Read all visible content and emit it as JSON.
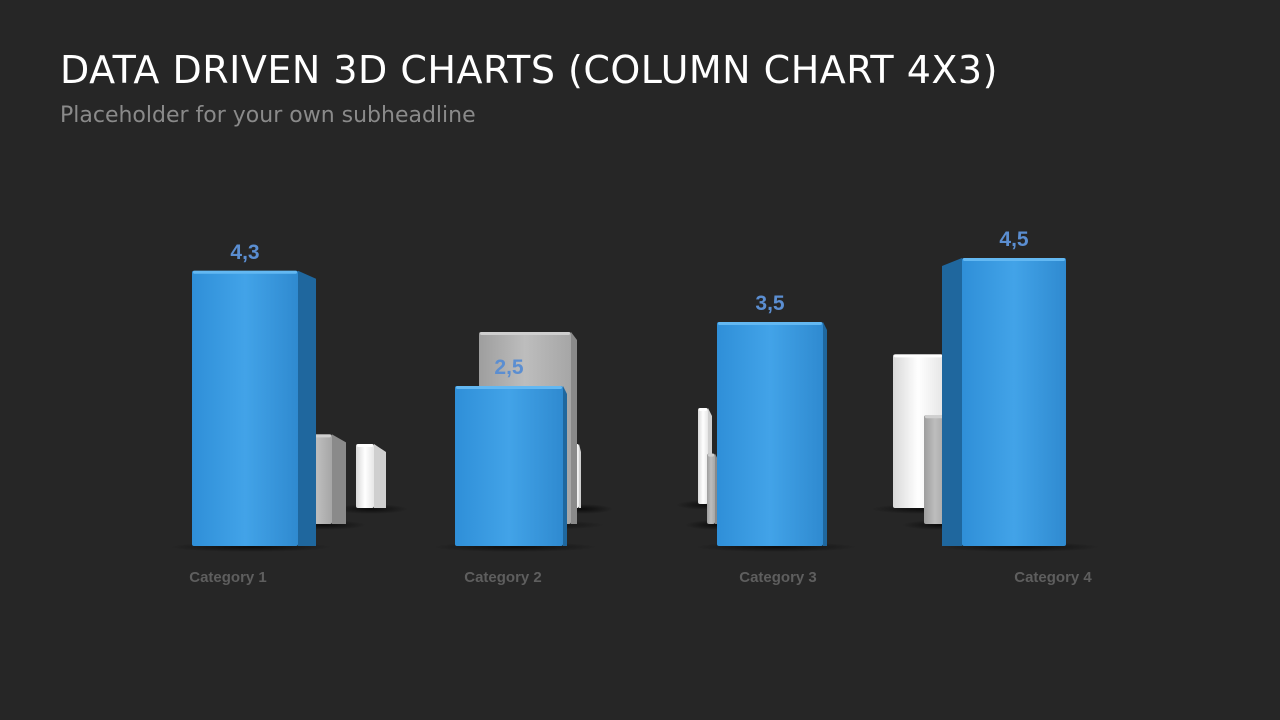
{
  "slide": {
    "title": "DATA DRIVEN 3D CHARTS (COLUMN CHART 4X3)",
    "subtitle": "Placeholder  for your own subheadline"
  },
  "colors": {
    "background": "#262626",
    "primary_front": "#3a9be0",
    "primary_side": "#1d5f92",
    "primary_top": "#5bb4f0",
    "label_blue": "#5b8ed1",
    "category_label": "#5e5e5e",
    "gray_front": "#b3b3b3",
    "white_front": "#f4f4f4"
  },
  "chart_data": {
    "type": "bar",
    "style": "3d-column",
    "categories": [
      "Category 1",
      "Category 2",
      "Category 3",
      "Category 4"
    ],
    "ylim": [
      0,
      5
    ],
    "grid": false,
    "legend": "none",
    "series": [
      {
        "values": [
          4.3,
          2.5,
          3.5,
          4.5
        ],
        "data_labels": [
          "4,3",
          "2,5",
          "3,5",
          "4,5"
        ],
        "color": "#3a9be0",
        "labeled": true
      },
      {
        "values": [
          1.4,
          3.0,
          1.1,
          1.7
        ],
        "color": "#b3b3b3",
        "labeled": false
      },
      {
        "values": [
          1.0,
          1.0,
          1.5,
          2.4
        ],
        "color": "#f4f4f4",
        "labeled": false
      }
    ]
  }
}
